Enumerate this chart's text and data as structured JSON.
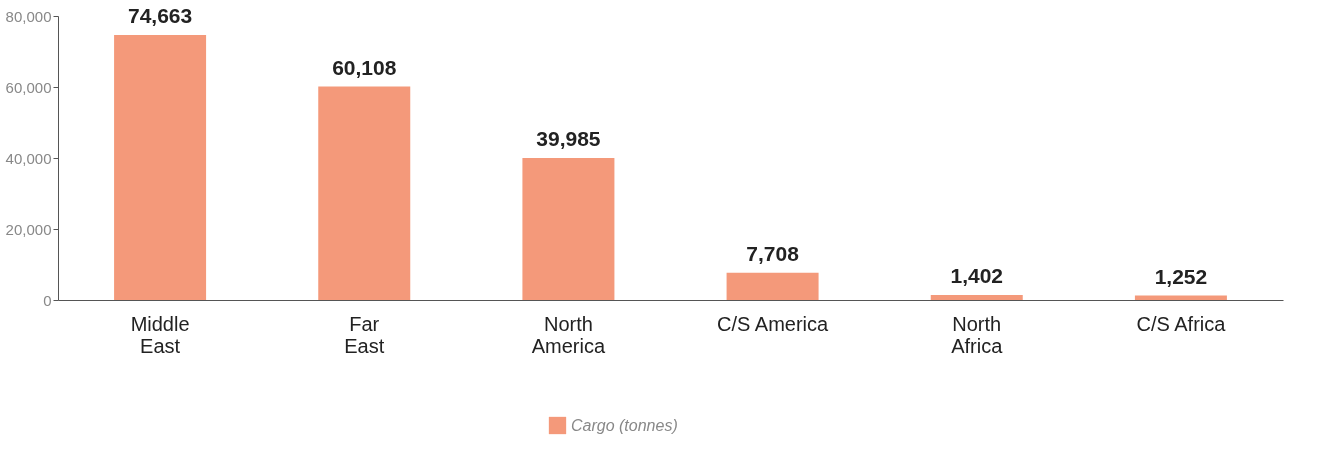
{
  "chart_data": {
    "type": "bar",
    "categories": [
      "Middle East",
      "Far East",
      "North America",
      "C/S America",
      "North Africa",
      "C/S Africa"
    ],
    "series": [
      {
        "name": "Cargo (tonnes)",
        "color": "#f4997a",
        "values": [
          74663,
          60108,
          39985,
          7708,
          1402,
          1252
        ],
        "value_labels": [
          "74,663",
          "60,108",
          "39,985",
          "7,708",
          "1,402",
          "1,252"
        ]
      }
    ],
    "ylim": [
      0,
      80000
    ],
    "yticks": [
      {
        "value": 0,
        "label": "0"
      },
      {
        "value": 20000,
        "label": "20,000"
      },
      {
        "value": 40000,
        "label": "40,000"
      },
      {
        "value": 60000,
        "label": "60,000"
      },
      {
        "value": 80000,
        "label": "80,000"
      }
    ],
    "grid": false,
    "legend": "bottom"
  }
}
